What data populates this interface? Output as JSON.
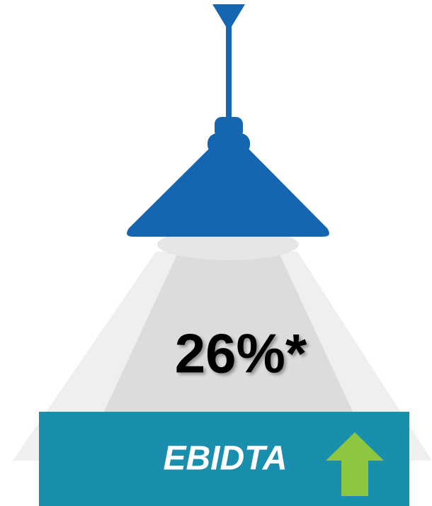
{
  "value_text": "26%*",
  "label": "EBIDTA"
}
